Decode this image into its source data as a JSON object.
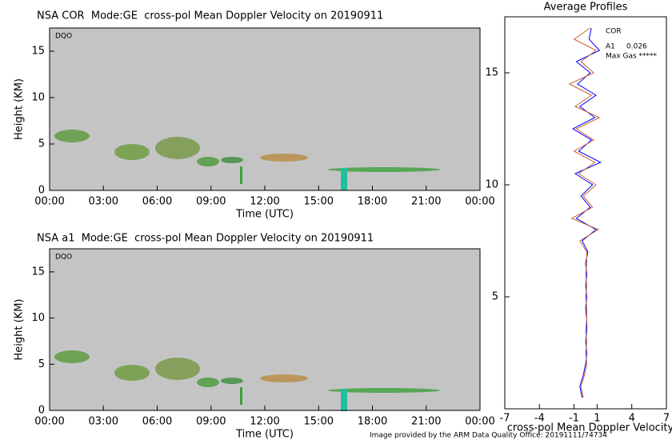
{
  "chart_data": [
    {
      "type": "timeheight",
      "title": "NSA COR  Mode:GE  cross-pol Mean Doppler Velocity on 20190911",
      "xlabel": "Time (UTC)",
      "ylabel": "Height (KM)",
      "annotation": "DQO",
      "xlim": [
        0,
        24
      ],
      "xticks": [
        {
          "value": 0,
          "label": "00:00"
        },
        {
          "value": 3,
          "label": "03:00"
        },
        {
          "value": 6,
          "label": "06:00"
        },
        {
          "value": 9,
          "label": "09:00"
        },
        {
          "value": 12,
          "label": "12:00"
        },
        {
          "value": 15,
          "label": "15:00"
        },
        {
          "value": 18,
          "label": "18:00"
        },
        {
          "value": 21,
          "label": "21:00"
        },
        {
          "value": 24,
          "label": "00:00"
        }
      ],
      "ylim": [
        0,
        17.5
      ],
      "yticks": [
        0,
        5,
        10,
        15
      ]
    },
    {
      "type": "timeheight",
      "title": "NSA a1  Mode:GE  cross-pol Mean Doppler Velocity on 20190911",
      "xlabel": "Time (UTC)",
      "ylabel": "Height (KM)",
      "annotation": "DQO",
      "xlim": [
        0,
        24
      ],
      "xticks": [
        {
          "value": 0,
          "label": "00:00"
        },
        {
          "value": 3,
          "label": "03:00"
        },
        {
          "value": 6,
          "label": "06:00"
        },
        {
          "value": 9,
          "label": "09:00"
        },
        {
          "value": 12,
          "label": "12:00"
        },
        {
          "value": 15,
          "label": "15:00"
        },
        {
          "value": 18,
          "label": "18:00"
        },
        {
          "value": 21,
          "label": "21:00"
        },
        {
          "value": 24,
          "label": "00:00"
        }
      ],
      "ylim": [
        0,
        17.5
      ],
      "yticks": [
        0,
        5,
        10,
        15
      ]
    },
    {
      "type": "profile",
      "title": "Average Profiles",
      "xlabel": "cross-pol Mean Doppler Velocity",
      "xlim": [
        -7,
        7
      ],
      "xticks": [
        -7,
        -4,
        -1,
        1,
        4,
        7
      ],
      "ylim": [
        0,
        17.5
      ],
      "yticks": [
        5,
        10,
        15
      ],
      "y": [
        0.5,
        1,
        1.5,
        2,
        2.5,
        3,
        3.5,
        4,
        4.5,
        5,
        5.5,
        6,
        6.5,
        7,
        7.5,
        8,
        8.5,
        9,
        9.5,
        10,
        10.5,
        11,
        11.5,
        12,
        12.5,
        13,
        13.5,
        14,
        14.5,
        15,
        15.5,
        16,
        16.5,
        17
      ],
      "series": [
        {
          "name": "COR",
          "color": "#0000ff",
          "values": [
            -0.3,
            -0.5,
            -0.2,
            0,
            0.1,
            0,
            0.1,
            0.1,
            0,
            0.1,
            0,
            0.1,
            0,
            0.2,
            -0.3,
            0.9,
            -0.8,
            0.4,
            -0.4,
            0.6,
            -0.9,
            1.3,
            -0.6,
            0.5,
            -1.1,
            0.8,
            -0.5,
            0.9,
            -0.7,
            0.4,
            -0.8,
            1.2,
            0.3,
            0.5
          ]
        },
        {
          "name": "A1",
          "color": "#c86432",
          "values": [
            -0.2,
            -0.4,
            -0.1,
            0.1,
            0,
            0.1,
            0,
            0.1,
            0.1,
            0,
            0.1,
            0,
            0.1,
            0.1,
            -0.5,
            1.1,
            -1.2,
            0.6,
            -0.2,
            0.9,
            -0.6,
            0.8,
            -1.0,
            0.7,
            -0.8,
            1.2,
            -0.9,
            0.5,
            -1.4,
            0.7,
            -0.4,
            0.9,
            -1.0,
            0.4
          ]
        }
      ],
      "annotations": [
        "0.026",
        "Max Gas *****"
      ]
    }
  ],
  "footer": "Image provided by the ARM Data Quality Office: 20191111/74734"
}
